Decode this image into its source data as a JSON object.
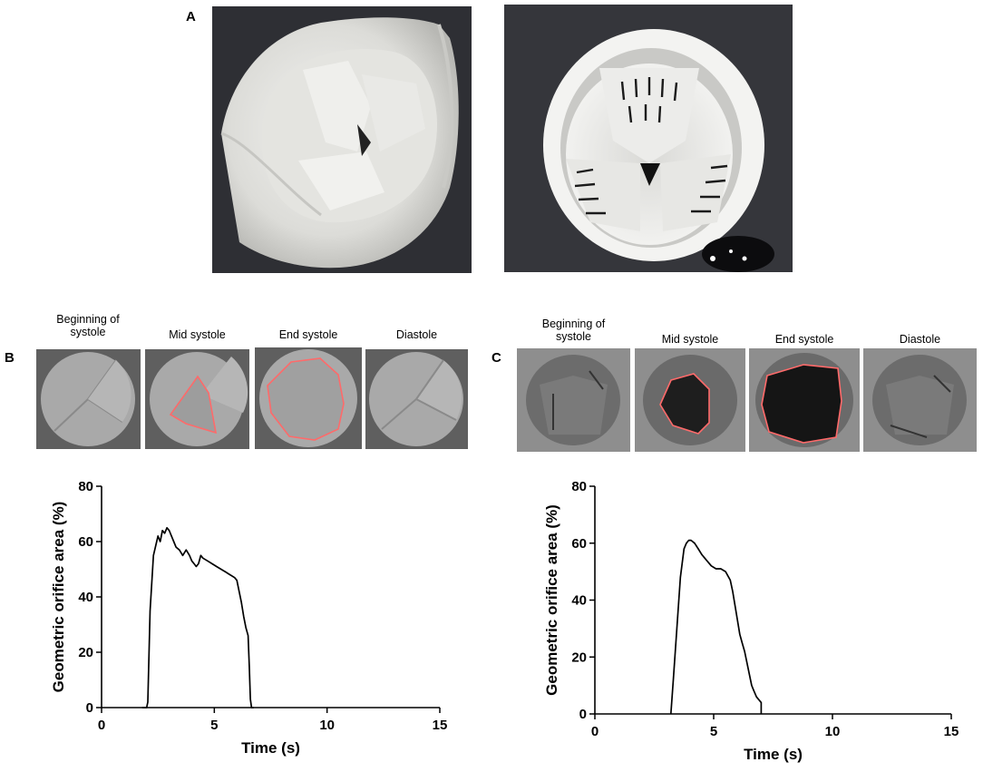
{
  "panels": {
    "a": {
      "letter": "A"
    },
    "b": {
      "letter": "B",
      "frames": [
        "Beginning of\nsystole",
        "Mid  systole",
        "End systole",
        "Diastole"
      ]
    },
    "c": {
      "letter": "C",
      "frames": [
        "Beginning of\nsystole",
        "Mid  systole",
        "End systole",
        "Diastole"
      ]
    }
  },
  "chart_data": [
    {
      "type": "line",
      "panel": "B",
      "xlabel": "Time (s)",
      "ylabel": "Geometric orifice area (%)",
      "xlim": [
        0,
        15
      ],
      "ylim": [
        0,
        80
      ],
      "xticks": [
        0,
        5,
        10,
        15
      ],
      "yticks": [
        0,
        20,
        40,
        60,
        80
      ],
      "series": [
        {
          "x": [
            1.8,
            2.0,
            2.05,
            2.15,
            2.3,
            2.5,
            2.6,
            2.7,
            2.8,
            2.9,
            3.0,
            3.1,
            3.2,
            3.3,
            3.45,
            3.6,
            3.75,
            3.9,
            4.0,
            4.1,
            4.2,
            4.3,
            4.4,
            4.5,
            4.7,
            4.9,
            5.1,
            5.3,
            5.5,
            5.7,
            5.9,
            6.0,
            6.1,
            6.2,
            6.3,
            6.4,
            6.5,
            6.55,
            6.6,
            6.65,
            6.75
          ],
          "y": [
            0,
            0,
            2,
            35,
            55,
            62,
            60,
            64,
            63,
            65,
            64,
            62,
            60,
            58,
            57,
            55,
            57,
            55,
            53,
            52,
            51,
            52,
            55,
            54,
            53,
            52,
            51,
            50,
            49,
            48,
            47,
            46,
            42,
            38,
            33,
            29,
            26,
            15,
            3,
            0,
            0
          ]
        }
      ]
    },
    {
      "type": "line",
      "panel": "C",
      "xlabel": "Time (s)",
      "ylabel": "Geometric orifice area (%)",
      "xlim": [
        0,
        15
      ],
      "ylim": [
        0,
        80
      ],
      "xticks": [
        0,
        5,
        10,
        15
      ],
      "yticks": [
        0,
        20,
        40,
        60,
        80
      ],
      "series": [
        {
          "x": [
            3.2,
            3.3,
            3.45,
            3.6,
            3.75,
            3.85,
            3.95,
            4.05,
            4.2,
            4.35,
            4.5,
            4.7,
            4.9,
            5.1,
            5.3,
            5.5,
            5.7,
            5.8,
            5.9,
            6.0,
            6.1,
            6.2,
            6.3,
            6.4,
            6.5,
            6.6,
            6.7,
            6.8,
            6.9,
            7.0,
            7.0
          ],
          "y": [
            0,
            12,
            30,
            48,
            58,
            60,
            61,
            61,
            60,
            58,
            56,
            54,
            52,
            51,
            51,
            50,
            47,
            43,
            38,
            33,
            28,
            25,
            22,
            18,
            14,
            10,
            8,
            6,
            5,
            4,
            0
          ]
        }
      ]
    }
  ]
}
